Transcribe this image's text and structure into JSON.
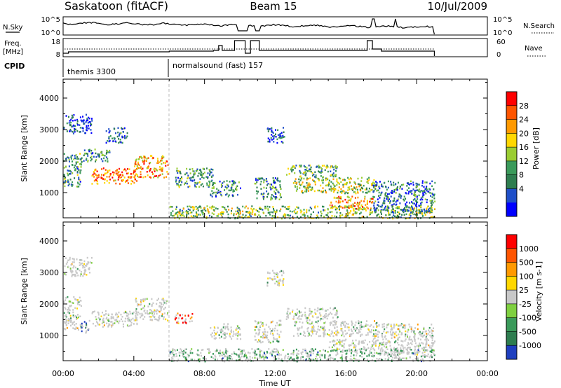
{
  "header": {
    "title_left": "Saskatoon (fitACF)",
    "title_center": "Beam 15",
    "title_right": "10/Jul/2009"
  },
  "strips": {
    "nsky_label": "N.Sky",
    "nsky_ticks": [
      "10^5",
      "10^0"
    ],
    "nsky_right_ticks": [
      "10^5",
      "10^0"
    ],
    "nsearch_label": "N.Search",
    "freq_label_1": "Freq.",
    "freq_label_2": "[MHz]",
    "freq_ticks": [
      "18",
      "8"
    ],
    "nave_ticks": [
      "60",
      "0"
    ],
    "nave_label": "Nave",
    "cpid_label": "CPID",
    "cpid_segments": [
      {
        "label": "themis 3300",
        "start_hour": 0
      },
      {
        "label": "normalsound (fast) 157",
        "start_hour": 6
      }
    ]
  },
  "chart_data": [
    {
      "type": "heatmap",
      "name": "power",
      "ylabel": "Slant Range [km]",
      "xlabel": "Time UT",
      "xlim": [
        0,
        24
      ],
      "ylim": [
        200,
        4600
      ],
      "x_ticks": [
        "00:00",
        "04:00",
        "08:00",
        "12:00",
        "16:00",
        "20:00",
        "00:00"
      ],
      "y_ticks": [
        1000,
        2000,
        3000,
        4000
      ],
      "colorbar": {
        "label": "Power [dB]",
        "ticks": [
          "28",
          "24",
          "20",
          "16",
          "12",
          "8",
          "4"
        ],
        "colors": [
          "#0000ff",
          "#1f4fc8",
          "#2e7d4f",
          "#3a9a5a",
          "#9acd32",
          "#ffd700",
          "#ff9900",
          "#ff5500",
          "#ff0000"
        ]
      },
      "regions": [
        {
          "t0": 0.0,
          "t1": 1.6,
          "r0": 2900,
          "r1": 3500,
          "intensity": 0.12
        },
        {
          "t0": 0.0,
          "t1": 1.0,
          "r0": 1200,
          "r1": 2300,
          "intensity": 0.35
        },
        {
          "t0": 1.0,
          "t1": 2.6,
          "r0": 2000,
          "r1": 2400,
          "intensity": 0.3
        },
        {
          "t0": 1.6,
          "t1": 4.2,
          "r0": 1300,
          "r1": 1800,
          "intensity": 0.8
        },
        {
          "t0": 4.0,
          "t1": 5.9,
          "r0": 1500,
          "r1": 2200,
          "intensity": 0.7
        },
        {
          "t0": 2.4,
          "t1": 3.6,
          "r0": 2600,
          "r1": 3100,
          "intensity": 0.25
        },
        {
          "t0": 6.3,
          "t1": 8.5,
          "r0": 1200,
          "r1": 1800,
          "intensity": 0.35
        },
        {
          "t0": 8.3,
          "t1": 10.0,
          "r0": 900,
          "r1": 1400,
          "intensity": 0.3
        },
        {
          "t0": 10.8,
          "t1": 12.3,
          "r0": 800,
          "r1": 1500,
          "intensity": 0.3
        },
        {
          "t0": 12.6,
          "t1": 15.5,
          "r0": 1500,
          "r1": 1900,
          "intensity": 0.4
        },
        {
          "t0": 13.0,
          "t1": 17.8,
          "r0": 1000,
          "r1": 1500,
          "intensity": 0.5
        },
        {
          "t0": 15.0,
          "t1": 17.5,
          "r0": 500,
          "r1": 900,
          "intensity": 0.7
        },
        {
          "t0": 17.5,
          "t1": 21.0,
          "r0": 400,
          "r1": 1400,
          "intensity": 0.25
        },
        {
          "t0": 6.0,
          "t1": 21.0,
          "r0": 200,
          "r1": 600,
          "intensity": 0.45
        },
        {
          "t0": 11.5,
          "t1": 12.5,
          "r0": 2600,
          "r1": 3100,
          "intensity": 0.15
        }
      ]
    },
    {
      "type": "heatmap",
      "name": "velocity",
      "ylabel": "Slant Range [km]",
      "xlabel": "Time UT",
      "xlim": [
        0,
        24
      ],
      "ylim": [
        200,
        4600
      ],
      "x_ticks": [
        "00:00",
        "04:00",
        "08:00",
        "12:00",
        "16:00",
        "20:00",
        "00:00"
      ],
      "y_ticks": [
        1000,
        2000,
        3000,
        4000
      ],
      "colorbar": {
        "label": "Velocity [m s-1]",
        "ticks": [
          "1000",
          "500",
          "100",
          "25",
          "-25",
          "-100",
          "-500",
          "-1000"
        ],
        "colors": [
          "#1f3fbf",
          "#2e7d4f",
          "#3a9a5a",
          "#7fd040",
          "#c8c8c8",
          "#ffd700",
          "#ff9900",
          "#ff5500",
          "#ff0000"
        ]
      },
      "regions": [
        {
          "t0": 0.0,
          "t1": 1.6,
          "r0": 2900,
          "r1": 3500,
          "v": 0.5
        },
        {
          "t0": 0.0,
          "t1": 1.0,
          "r0": 1200,
          "r1": 2300,
          "v": 0.45
        },
        {
          "t0": 1.0,
          "t1": 1.5,
          "r0": 1100,
          "r1": 1500,
          "v": 0.05
        },
        {
          "t0": 1.6,
          "t1": 4.2,
          "r0": 1300,
          "r1": 1800,
          "v": 0.45
        },
        {
          "t0": 4.0,
          "t1": 5.9,
          "r0": 1500,
          "r1": 2200,
          "v": 0.45
        },
        {
          "t0": 6.3,
          "t1": 7.3,
          "r0": 1400,
          "r1": 1750,
          "v": 0.9
        },
        {
          "t0": 8.3,
          "t1": 10.0,
          "r0": 900,
          "r1": 1400,
          "v": 0.45
        },
        {
          "t0": 10.8,
          "t1": 12.3,
          "r0": 800,
          "r1": 1500,
          "v": 0.45
        },
        {
          "t0": 12.6,
          "t1": 15.5,
          "r0": 1500,
          "r1": 1900,
          "v": 0.45
        },
        {
          "t0": 13.0,
          "t1": 17.8,
          "r0": 1000,
          "r1": 1500,
          "v": 0.45
        },
        {
          "t0": 15.0,
          "t1": 17.5,
          "r0": 500,
          "r1": 900,
          "v": 0.45
        },
        {
          "t0": 17.5,
          "t1": 21.0,
          "r0": 400,
          "r1": 1400,
          "v": 0.45
        },
        {
          "t0": 6.0,
          "t1": 21.0,
          "r0": 200,
          "r1": 600,
          "v": 0.3
        },
        {
          "t0": 11.5,
          "t1": 12.5,
          "r0": 2600,
          "r1": 3100,
          "v": 0.45
        }
      ]
    }
  ]
}
